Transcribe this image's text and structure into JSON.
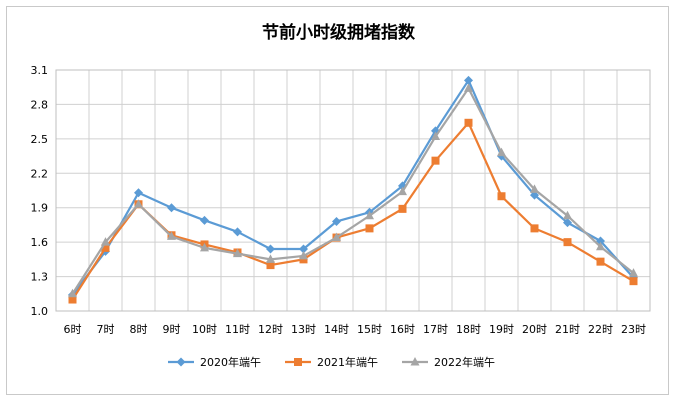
{
  "chart_data": {
    "type": "line",
    "title": "节前小时级拥堵指数",
    "xlabel": "",
    "ylabel": "",
    "categories": [
      "6时",
      "7时",
      "8时",
      "9时",
      "10时",
      "11时",
      "12时",
      "13时",
      "14时",
      "15时",
      "16时",
      "17时",
      "18时",
      "19时",
      "20时",
      "21时",
      "22时",
      "23时"
    ],
    "ylim": [
      1.0,
      3.1
    ],
    "yticks": [
      "1.0",
      "1.3",
      "1.6",
      "1.9",
      "2.2",
      "2.5",
      "2.8",
      "3.1"
    ],
    "grid": true,
    "legend": "bottom",
    "series": [
      {
        "name": "2020年端午",
        "color": "#5b9bd5",
        "marker": "diamond",
        "values": [
          1.14,
          1.52,
          2.03,
          1.9,
          1.79,
          1.69,
          1.54,
          1.54,
          1.78,
          1.86,
          2.09,
          2.57,
          3.01,
          2.35,
          2.01,
          1.77,
          1.61,
          1.29
        ]
      },
      {
        "name": "2021年端午",
        "color": "#ed7d31",
        "marker": "square",
        "values": [
          1.1,
          1.55,
          1.93,
          1.66,
          1.58,
          1.51,
          1.4,
          1.45,
          1.64,
          1.72,
          1.89,
          2.31,
          2.64,
          2.0,
          1.72,
          1.6,
          1.43,
          1.26
        ]
      },
      {
        "name": "2022年端午",
        "color": "#a5a5a5",
        "marker": "triangle",
        "values": [
          1.15,
          1.6,
          1.93,
          1.65,
          1.55,
          1.5,
          1.45,
          1.48,
          1.64,
          1.83,
          2.04,
          2.52,
          2.94,
          2.38,
          2.06,
          1.83,
          1.56,
          1.33
        ]
      }
    ]
  }
}
